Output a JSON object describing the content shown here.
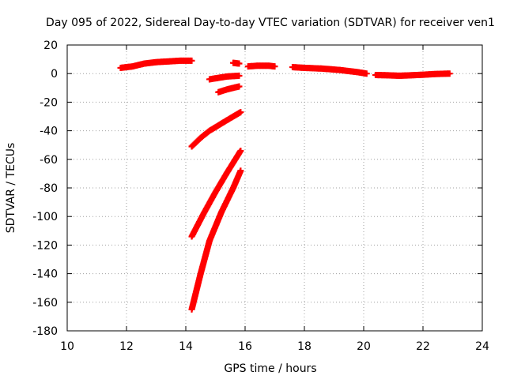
{
  "chart_data": {
    "type": "scatter",
    "title": "Day 095 of 2022, Sidereal Day-to-day VTEC variation (SDTVAR) for receiver ven1",
    "xlabel": "GPS time / hours",
    "ylabel": "SDTVAR / TECUs",
    "xlim": [
      10,
      24
    ],
    "ylim": [
      -180,
      20
    ],
    "xticks": [
      10,
      12,
      14,
      16,
      18,
      20,
      22,
      24
    ],
    "yticks": [
      20,
      0,
      -20,
      -40,
      -60,
      -80,
      -100,
      -120,
      -140,
      -160,
      -180
    ],
    "grid": true,
    "legend": "none",
    "marker": "plus",
    "color": "#ff0000",
    "series": [
      {
        "x": [
          11.8,
          12.2,
          12.6,
          13.0,
          13.4,
          13.8,
          14.2
        ],
        "y": [
          4,
          5,
          7,
          8,
          8.5,
          9,
          9
        ]
      },
      {
        "x": [
          14.8,
          15.1,
          15.4,
          15.8
        ],
        "y": [
          -4,
          -3,
          -2,
          -1.5
        ]
      },
      {
        "x": [
          15.6,
          15.8
        ],
        "y": [
          7.5,
          7
        ]
      },
      {
        "x": [
          15.1,
          15.4,
          15.8
        ],
        "y": [
          -13,
          -11,
          -9
        ]
      },
      {
        "x": [
          14.2,
          14.5,
          14.8,
          15.2,
          15.6,
          15.85
        ],
        "y": [
          -51,
          -45,
          -40,
          -35,
          -30,
          -27
        ]
      },
      {
        "x": [
          14.2,
          14.6,
          15.0,
          15.4,
          15.85
        ],
        "y": [
          -114,
          -98,
          -83,
          -69,
          -54
        ]
      },
      {
        "x": [
          14.2,
          14.5,
          14.8,
          15.2,
          15.6,
          15.85
        ],
        "y": [
          -165,
          -140,
          -117,
          -97,
          -80,
          -68
        ]
      },
      {
        "x": [
          16.1,
          16.4,
          16.8,
          17.0
        ],
        "y": [
          5,
          5.5,
          5.5,
          5
        ]
      },
      {
        "x": [
          17.6,
          18.0,
          18.6,
          19.2,
          19.8,
          20.1
        ],
        "y": [
          4.5,
          4,
          3.5,
          2.5,
          1,
          0
        ]
      },
      {
        "x": [
          20.4,
          20.8,
          21.2,
          21.6,
          22.0,
          22.4,
          22.9
        ],
        "y": [
          -1,
          -1.2,
          -1.5,
          -1.2,
          -0.8,
          -0.3,
          0
        ]
      }
    ]
  }
}
